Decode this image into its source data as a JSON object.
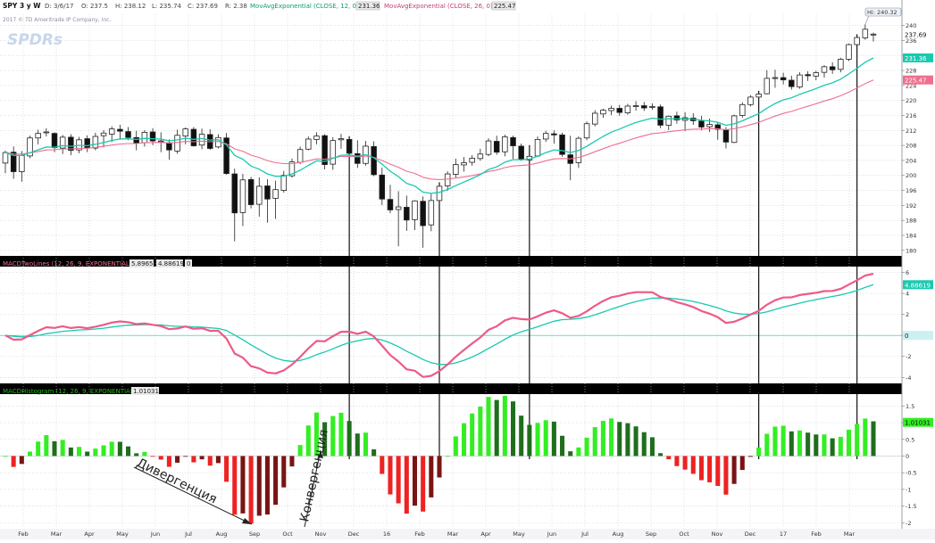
{
  "header": {
    "symbol": "SPY 3 y W",
    "date": "D: 3/6/17",
    "open": "O: 237.5",
    "high": "H: 238.12",
    "low": "L: 235.74",
    "close": "C: 237.69",
    "range": "R: 2.38",
    "ema12_label": "MovAvgExponential (CLOSE, 12, 0)",
    "ema12_value": "231.36",
    "ema26_label": "MovAvgExponential (CLOSE, 26, 0)",
    "ema26_value": "225.47",
    "copyright": "2017 © TD Ameritrade IP Company, Inc.",
    "logo": "SPDRs"
  },
  "colors": {
    "ema12": "#19c9b0",
    "ema26": "#ee6f8f",
    "macd_line": "#ee5a86",
    "signal_line": "#19c9b0",
    "hist_up_strong": "#33ee22",
    "hist_up_weak": "#1f6e1c",
    "hist_dn_strong": "#ee2222",
    "hist_dn_weak": "#7a1414",
    "panel_bar": "#000000",
    "grid": "#c8ccd6"
  },
  "price_panel": {
    "y_ticks": [
      "180",
      "184",
      "188",
      "192",
      "196",
      "200",
      "204",
      "208",
      "212",
      "216",
      "220",
      "224",
      "228",
      "232",
      "236",
      "240"
    ],
    "ylim": [
      179,
      243
    ],
    "last_close_label": "237.69",
    "high_label": "Hi: 240.32",
    "ema12_badge": "231.36",
    "ema26_badge": "225.47"
  },
  "macd_panel": {
    "title": "MACDTwoLines (12, 26, 9, EXPONENTIAL)",
    "value1": "5.8965",
    "value2": "4.88619",
    "value3": "0",
    "y_ticks": [
      "-4",
      "-2",
      "0",
      "2",
      "4",
      "6"
    ],
    "ylim": [
      -4.4,
      6.3
    ],
    "badge": "4.88619",
    "zero_badge": "0"
  },
  "hist_panel": {
    "title": "MACDHistogram (12, 26, 9, EXPONENTIAL)",
    "value": "1.01031",
    "y_ticks": [
      "-2",
      "-1.5",
      "-1",
      "-0.5",
      "0",
      "0.5",
      "1",
      "1.5"
    ],
    "ylim": [
      -2.1,
      1.75
    ],
    "badge": "1.01031"
  },
  "x_axis": [
    "Feb",
    "Mar",
    "Apr",
    "May",
    "Jun",
    "Jul",
    "Aug",
    "Sep",
    "Oct",
    "Nov",
    "Dec",
    "16",
    "Feb",
    "Mar",
    "Apr",
    "May",
    "Jun",
    "Jul",
    "Aug",
    "Sep",
    "Oct",
    "Nov",
    "Dec",
    "17",
    "Feb",
    "Mar"
  ],
  "annotations": {
    "divergence": "Дивергенция",
    "convergence": "Конвергенция"
  },
  "chart_data": {
    "type": "candlestick",
    "period": "weekly",
    "candles": [
      {
        "o": 203.3,
        "h": 206.6,
        "l": 200.6,
        "c": 206.1
      },
      {
        "o": 206.2,
        "h": 207.7,
        "l": 199.1,
        "c": 201.0
      },
      {
        "o": 201.0,
        "h": 206.5,
        "l": 198.3,
        "c": 205.3
      },
      {
        "o": 205.2,
        "h": 210.6,
        "l": 204.6,
        "c": 210.0
      },
      {
        "o": 210.0,
        "h": 212.2,
        "l": 208.3,
        "c": 211.2
      },
      {
        "o": 211.5,
        "h": 212.6,
        "l": 210.4,
        "c": 211.6
      },
      {
        "o": 211.2,
        "h": 211.5,
        "l": 206.2,
        "c": 207.4
      },
      {
        "o": 207.3,
        "h": 210.8,
        "l": 205.7,
        "c": 210.2
      },
      {
        "o": 210.2,
        "h": 211.0,
        "l": 205.4,
        "c": 206.7
      },
      {
        "o": 206.8,
        "h": 210.3,
        "l": 205.9,
        "c": 209.5
      },
      {
        "o": 209.8,
        "h": 210.7,
        "l": 206.2,
        "c": 207.4
      },
      {
        "o": 207.3,
        "h": 211.4,
        "l": 206.7,
        "c": 210.4
      },
      {
        "o": 210.6,
        "h": 212.1,
        "l": 207.5,
        "c": 211.3
      },
      {
        "o": 211.0,
        "h": 213.1,
        "l": 208.9,
        "c": 212.4
      },
      {
        "o": 212.3,
        "h": 213.5,
        "l": 209.5,
        "c": 211.8
      },
      {
        "o": 211.7,
        "h": 212.9,
        "l": 209.4,
        "c": 210.1
      },
      {
        "o": 210.1,
        "h": 211.9,
        "l": 206.7,
        "c": 208.6
      },
      {
        "o": 208.7,
        "h": 212.1,
        "l": 207.7,
        "c": 211.5
      },
      {
        "o": 211.6,
        "h": 212.6,
        "l": 208.1,
        "c": 209.2
      },
      {
        "o": 209.1,
        "h": 211.5,
        "l": 206.2,
        "c": 209.2
      },
      {
        "o": 208.7,
        "h": 209.6,
        "l": 204.2,
        "c": 206.8
      },
      {
        "o": 206.5,
        "h": 212.2,
        "l": 205.8,
        "c": 210.7
      },
      {
        "o": 210.5,
        "h": 212.8,
        "l": 208.3,
        "c": 212.4
      },
      {
        "o": 212.3,
        "h": 212.9,
        "l": 207.7,
        "c": 207.9
      },
      {
        "o": 208.1,
        "h": 212.5,
        "l": 207.0,
        "c": 211.0
      },
      {
        "o": 210.9,
        "h": 212.3,
        "l": 206.8,
        "c": 207.2
      },
      {
        "o": 207.6,
        "h": 211.0,
        "l": 207.2,
        "c": 210.1
      },
      {
        "o": 210.0,
        "h": 211.3,
        "l": 200.2,
        "c": 200.5
      },
      {
        "o": 200.4,
        "h": 201.8,
        "l": 182.4,
        "c": 190.0
      },
      {
        "o": 190.1,
        "h": 200.4,
        "l": 186.5,
        "c": 198.8
      },
      {
        "o": 198.9,
        "h": 199.6,
        "l": 191.2,
        "c": 192.2
      },
      {
        "o": 192.3,
        "h": 199.5,
        "l": 189.0,
        "c": 197.1
      },
      {
        "o": 197.2,
        "h": 199.0,
        "l": 187.4,
        "c": 193.7
      },
      {
        "o": 193.9,
        "h": 198.6,
        "l": 188.4,
        "c": 196.2
      },
      {
        "o": 196.0,
        "h": 201.2,
        "l": 195.4,
        "c": 200.0
      },
      {
        "o": 199.9,
        "h": 204.5,
        "l": 199.4,
        "c": 203.6
      },
      {
        "o": 203.5,
        "h": 207.7,
        "l": 203.0,
        "c": 206.9
      },
      {
        "o": 207.0,
        "h": 210.4,
        "l": 206.7,
        "c": 209.7
      },
      {
        "o": 209.6,
        "h": 211.5,
        "l": 208.3,
        "c": 210.5
      },
      {
        "o": 210.6,
        "h": 211.0,
        "l": 201.6,
        "c": 202.9
      },
      {
        "o": 203.0,
        "h": 210.2,
        "l": 201.5,
        "c": 209.3
      },
      {
        "o": 209.5,
        "h": 211.1,
        "l": 207.1,
        "c": 209.8
      },
      {
        "o": 209.6,
        "h": 210.0,
        "l": 203.8,
        "c": 205.9
      },
      {
        "o": 205.8,
        "h": 209.4,
        "l": 202.0,
        "c": 203.2
      },
      {
        "o": 203.2,
        "h": 209.2,
        "l": 202.6,
        "c": 207.8
      },
      {
        "o": 207.7,
        "h": 209.1,
        "l": 199.8,
        "c": 200.2
      },
      {
        "o": 200.1,
        "h": 202.1,
        "l": 192.1,
        "c": 193.7
      },
      {
        "o": 193.6,
        "h": 197.5,
        "l": 189.9,
        "c": 190.8
      },
      {
        "o": 190.9,
        "h": 195.8,
        "l": 181.1,
        "c": 191.6
      },
      {
        "o": 191.5,
        "h": 194.6,
        "l": 185.2,
        "c": 188.1
      },
      {
        "o": 188.2,
        "h": 193.4,
        "l": 185.4,
        "c": 193.2
      },
      {
        "o": 193.1,
        "h": 194.4,
        "l": 180.7,
        "c": 186.6
      },
      {
        "o": 186.8,
        "h": 195.1,
        "l": 185.1,
        "c": 193.3
      },
      {
        "o": 193.3,
        "h": 197.7,
        "l": 192.3,
        "c": 197.1
      },
      {
        "o": 197.2,
        "h": 201.1,
        "l": 195.9,
        "c": 200.4
      },
      {
        "o": 200.3,
        "h": 204.5,
        "l": 199.4,
        "c": 202.9
      },
      {
        "o": 202.8,
        "h": 204.9,
        "l": 201.0,
        "c": 203.4
      },
      {
        "o": 203.5,
        "h": 205.4,
        "l": 202.6,
        "c": 204.6
      },
      {
        "o": 204.5,
        "h": 207.1,
        "l": 203.9,
        "c": 205.7
      },
      {
        "o": 205.6,
        "h": 209.9,
        "l": 205.1,
        "c": 209.2
      },
      {
        "o": 209.1,
        "h": 210.6,
        "l": 205.5,
        "c": 206.2
      },
      {
        "o": 206.3,
        "h": 210.9,
        "l": 205.1,
        "c": 210.3
      },
      {
        "o": 210.1,
        "h": 210.6,
        "l": 204.4,
        "c": 207.9
      },
      {
        "o": 207.8,
        "h": 208.5,
        "l": 203.9,
        "c": 204.2
      },
      {
        "o": 204.1,
        "h": 207.6,
        "l": 203.9,
        "c": 205.1
      },
      {
        "o": 205.2,
        "h": 210.4,
        "l": 204.9,
        "c": 209.6
      },
      {
        "o": 209.7,
        "h": 211.9,
        "l": 208.9,
        "c": 211.2
      },
      {
        "o": 211.1,
        "h": 212.0,
        "l": 208.5,
        "c": 210.8
      },
      {
        "o": 210.8,
        "h": 211.4,
        "l": 205.0,
        "c": 205.6
      },
      {
        "o": 205.5,
        "h": 210.6,
        "l": 198.7,
        "c": 203.2
      },
      {
        "o": 203.4,
        "h": 210.4,
        "l": 202.0,
        "c": 209.9
      },
      {
        "o": 210.0,
        "h": 214.4,
        "l": 209.4,
        "c": 213.8
      },
      {
        "o": 213.7,
        "h": 217.4,
        "l": 213.1,
        "c": 216.6
      },
      {
        "o": 216.4,
        "h": 217.8,
        "l": 215.4,
        "c": 217.4
      },
      {
        "o": 217.3,
        "h": 218.6,
        "l": 216.1,
        "c": 217.9
      },
      {
        "o": 217.9,
        "h": 218.8,
        "l": 215.9,
        "c": 216.8
      },
      {
        "o": 216.7,
        "h": 219.1,
        "l": 216.2,
        "c": 218.5
      },
      {
        "o": 218.4,
        "h": 219.8,
        "l": 217.3,
        "c": 218.6
      },
      {
        "o": 218.6,
        "h": 219.6,
        "l": 217.2,
        "c": 218.0
      },
      {
        "o": 218.2,
        "h": 219.2,
        "l": 217.5,
        "c": 218.4
      },
      {
        "o": 218.3,
        "h": 218.9,
        "l": 212.6,
        "c": 213.4
      },
      {
        "o": 213.4,
        "h": 216.0,
        "l": 212.1,
        "c": 215.8
      },
      {
        "o": 215.9,
        "h": 217.0,
        "l": 213.8,
        "c": 214.8
      },
      {
        "o": 214.7,
        "h": 216.9,
        "l": 211.8,
        "c": 215.4
      },
      {
        "o": 215.3,
        "h": 216.6,
        "l": 213.5,
        "c": 214.6
      },
      {
        "o": 214.5,
        "h": 215.9,
        "l": 212.0,
        "c": 212.9
      },
      {
        "o": 213.0,
        "h": 215.2,
        "l": 211.6,
        "c": 213.6
      },
      {
        "o": 213.5,
        "h": 214.1,
        "l": 209.5,
        "c": 212.3
      },
      {
        "o": 212.2,
        "h": 212.9,
        "l": 207.2,
        "c": 208.9
      },
      {
        "o": 208.8,
        "h": 216.2,
        "l": 208.6,
        "c": 215.9
      },
      {
        "o": 216.0,
        "h": 219.5,
        "l": 215.4,
        "c": 218.9
      },
      {
        "o": 218.9,
        "h": 221.4,
        "l": 218.4,
        "c": 220.9
      },
      {
        "o": 220.9,
        "h": 222.1,
        "l": 219.6,
        "c": 221.7
      },
      {
        "o": 221.8,
        "h": 228.1,
        "l": 221.6,
        "c": 225.9
      },
      {
        "o": 225.9,
        "h": 228.2,
        "l": 223.4,
        "c": 226.1
      },
      {
        "o": 226.1,
        "h": 227.4,
        "l": 224.3,
        "c": 225.5
      },
      {
        "o": 225.4,
        "h": 226.6,
        "l": 222.9,
        "c": 223.7
      },
      {
        "o": 223.6,
        "h": 227.5,
        "l": 223.1,
        "c": 226.8
      },
      {
        "o": 226.9,
        "h": 227.8,
        "l": 225.2,
        "c": 226.6
      },
      {
        "o": 226.5,
        "h": 227.9,
        "l": 225.4,
        "c": 227.4
      },
      {
        "o": 227.5,
        "h": 229.4,
        "l": 226.1,
        "c": 229.0
      },
      {
        "o": 229.0,
        "h": 230.2,
        "l": 227.1,
        "c": 228.2
      },
      {
        "o": 228.3,
        "h": 231.4,
        "l": 227.5,
        "c": 231.0
      },
      {
        "o": 231.0,
        "h": 235.2,
        "l": 230.5,
        "c": 234.9
      },
      {
        "o": 234.9,
        "h": 237.2,
        "l": 234.3,
        "c": 236.8
      },
      {
        "o": 236.7,
        "h": 240.3,
        "l": 236.2,
        "c": 239.0
      },
      {
        "o": 237.5,
        "h": 238.1,
        "l": 235.7,
        "c": 237.7
      }
    ],
    "ema12_labelled_last": 231.36,
    "ema26_labelled_last": 225.47,
    "macd_last": 5.8965,
    "signal_last": 4.88619,
    "histogram_last": 1.01031,
    "markers": [
      {
        "kind": "vertical_line",
        "candle": 42
      },
      {
        "kind": "vertical_line",
        "candle": 53
      },
      {
        "kind": "vertical_line",
        "candle": 64
      },
      {
        "kind": "vertical_line",
        "candle": 92
      },
      {
        "kind": "vertical_line",
        "candle": 104
      }
    ]
  }
}
